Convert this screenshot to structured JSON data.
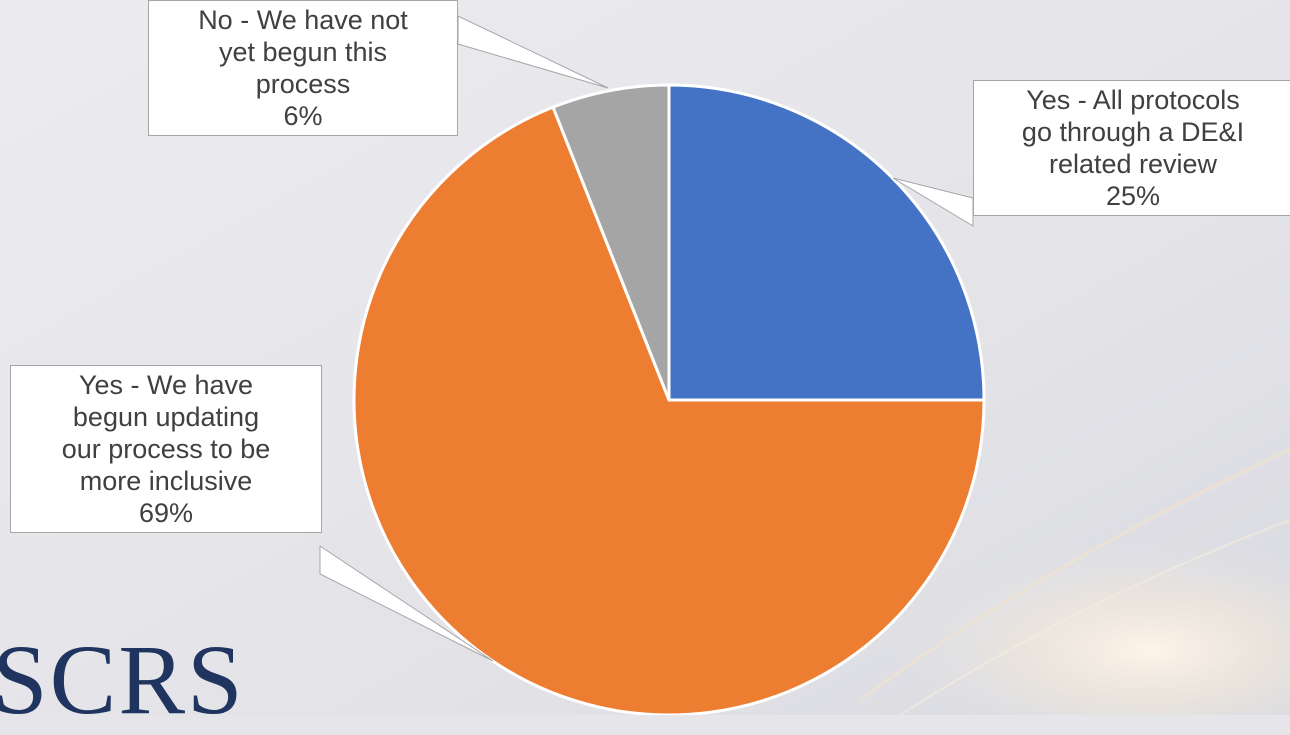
{
  "chart_data": {
    "type": "pie",
    "title": "",
    "start_angle_deg": 0,
    "direction": "clockwise",
    "slices": [
      {
        "label": "Yes - All protocols go through a DE&I related review",
        "value": 25,
        "value_label": "25%",
        "color": "#4472c4",
        "label_lines": [
          "Yes - All protocols",
          "go through a DE&I",
          "related review",
          "25%"
        ]
      },
      {
        "label": "Yes - We have begun updating our process to be more inclusive",
        "value": 69,
        "value_label": "69%",
        "color": "#ed7d31",
        "label_lines": [
          "Yes - We have",
          "begun updating",
          "our process to be",
          "more inclusive",
          "69%"
        ]
      },
      {
        "label": "No - We have not yet begun this process",
        "value": 6,
        "value_label": "6%",
        "color": "#a5a5a5",
        "label_lines": [
          "No - We have not",
          "yet begun this",
          "process",
          "6%"
        ]
      }
    ]
  },
  "logo": {
    "text": "SCRS"
  }
}
